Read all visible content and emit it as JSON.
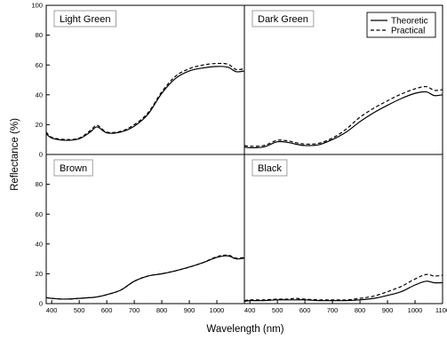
{
  "chart_data": {
    "type": "line",
    "layout": "2x2-panels-shared-axes",
    "xlabel": "Wavelength (nm)",
    "ylabel": "Reflectance (%)",
    "xlim": [
      380,
      1100
    ],
    "ylim": [
      0,
      100
    ],
    "x_ticks": [
      "400",
      "500",
      "600",
      "700",
      "800",
      "900",
      "1000",
      "1100"
    ],
    "y_ticks": [
      "0",
      "20",
      "40",
      "60",
      "80",
      "100"
    ],
    "grid": false,
    "legend": {
      "placement": "top-right",
      "panel": "dark_green",
      "entries": [
        {
          "name": "Theoretic",
          "style": "solid"
        },
        {
          "name": "Practical",
          "style": "dashed"
        }
      ]
    },
    "x": [
      380,
      400,
      450,
      500,
      540,
      565,
      600,
      650,
      700,
      750,
      800,
      850,
      900,
      950,
      1000,
      1040,
      1070,
      1100
    ],
    "panels": [
      {
        "key": "light_green",
        "label": "Light Green",
        "series": [
          {
            "name": "Theoretic",
            "style": "solid",
            "values": [
              14,
              11,
              9.5,
              10.5,
              15,
              18.5,
              14.5,
              15,
              19,
              27,
              41,
              51,
              56,
              58,
              59,
              58.5,
              55.5,
              56
            ]
          },
          {
            "name": "Practical",
            "style": "dashed",
            "values": [
              15,
              11.5,
              10,
              11,
              16,
              19.5,
              15,
              15.5,
              20,
              28,
              42,
              52.5,
              57.5,
              60,
              61,
              60.5,
              57,
              57.5
            ]
          }
        ]
      },
      {
        "key": "dark_green",
        "label": "Dark Green",
        "series": [
          {
            "name": "Theoretic",
            "style": "solid",
            "values": [
              5,
              4.5,
              5,
              8.5,
              8,
              7,
              6,
              6.5,
              10,
              15,
              22,
              28,
              33,
              37.5,
              41,
              42,
              39.5,
              40
            ]
          },
          {
            "name": "Practical",
            "style": "dashed",
            "values": [
              6,
              5.5,
              6,
              9.5,
              9,
              8,
              7,
              7.5,
              11,
              17,
              25,
              31,
              36,
              40.5,
              44,
              45.5,
              43,
              43.5
            ]
          }
        ]
      },
      {
        "key": "brown",
        "label": "Brown",
        "series": [
          {
            "name": "Theoretic",
            "style": "solid",
            "values": [
              4,
              3.5,
              3,
              3.5,
              4,
              4.5,
              6,
              9,
              15,
              18.5,
              20,
              22,
              24.5,
              27.5,
              31,
              32,
              30,
              30.5
            ]
          },
          {
            "name": "Practical",
            "style": "dashed",
            "values": [
              4,
              3.5,
              3,
              3.5,
              4,
              4.5,
              6,
              9,
              15,
              18.5,
              20,
              22,
              24.5,
              27.5,
              31.5,
              32.5,
              30.5,
              31
            ]
          }
        ]
      },
      {
        "key": "black",
        "label": "Black",
        "series": [
          {
            "name": "Theoretic",
            "style": "solid",
            "values": [
              1.5,
              2,
              2,
              2.5,
              2.5,
              2.5,
              2.5,
              2,
              2,
              2,
              2.5,
              3.5,
              5.5,
              8,
              12.5,
              15,
              14,
              14
            ]
          },
          {
            "name": "Practical",
            "style": "dashed",
            "values": [
              2,
              2.5,
              2.5,
              3,
              3,
              3.5,
              3,
              2.5,
              2.5,
              2.5,
              3.5,
              5,
              8,
              11.5,
              16.5,
              19.5,
              18.5,
              19
            ]
          }
        ]
      }
    ]
  }
}
